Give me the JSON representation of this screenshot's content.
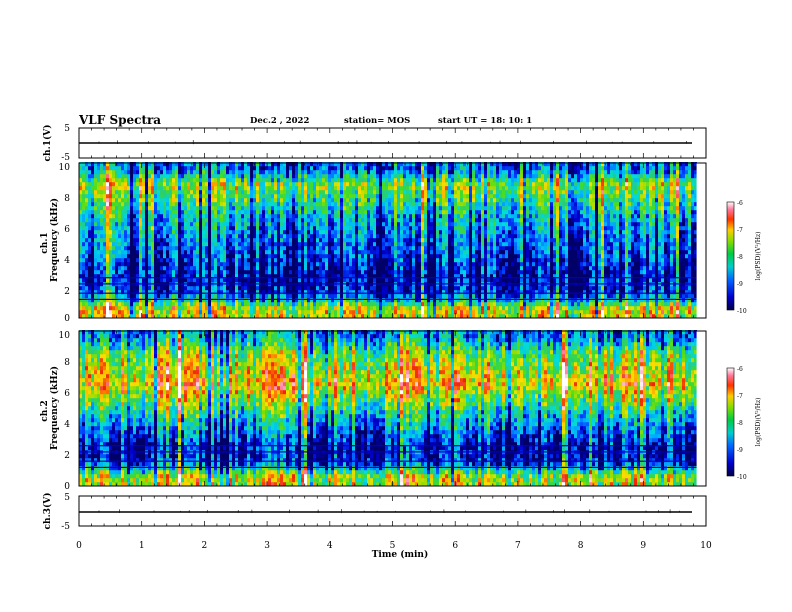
{
  "header": {
    "title": "VLF Spectra",
    "date": "Dec.2 , 2022",
    "station": "station= MOS",
    "start": "start UT =  18: 10: 1"
  },
  "colors": {
    "colormap": [
      "#000066",
      "#0000cc",
      "#0044ff",
      "#00aaff",
      "#00dddd",
      "#22cc88",
      "#44dd22",
      "#aadd00",
      "#ffdd00",
      "#ff8800",
      "#ee2200",
      "#ff88aa",
      "#ffffff"
    ]
  },
  "chart_data": [
    {
      "type": "line",
      "panel": "ch1-voltage",
      "ylabel": "ch.1(V)",
      "ylim": [
        -5,
        5
      ],
      "yticks": [
        "5",
        "-5"
      ],
      "level": 0
    },
    {
      "type": "heatmap",
      "panel": "ch1-spectrogram",
      "ylabel": "Frequency (kHz)",
      "channel_label": "ch.1",
      "ylim": [
        0,
        10
      ],
      "yticks": [
        "0",
        "2",
        "4",
        "6",
        "8",
        "10"
      ],
      "band_frequencies_khz": [
        0.5,
        1.5,
        2.5,
        4.5,
        6.5,
        8.5,
        9.5
      ],
      "band_log_psd": [
        -7.5,
        -9.5,
        -9.8,
        -9.3,
        -8.8,
        -7.8,
        -9.2
      ],
      "colorbar": {
        "label": "log(PSD)(V²/Hz)",
        "ticks": [
          "-6",
          "-7",
          "-8",
          "-9",
          "-10"
        ],
        "range": [
          -10,
          -6
        ]
      }
    },
    {
      "type": "heatmap",
      "panel": "ch2-spectrogram",
      "ylabel": "Frequency (kHz)",
      "channel_label": "ch.2",
      "ylim": [
        0,
        10
      ],
      "yticks": [
        "0",
        "2",
        "4",
        "6",
        "8",
        "10"
      ],
      "band_frequencies_khz": [
        0.5,
        1.5,
        2.5,
        4.5,
        6.5,
        8.5,
        9.5
      ],
      "band_log_psd": [
        -7.6,
        -9.6,
        -9.7,
        -8.6,
        -7.2,
        -8.0,
        -9.0
      ],
      "colorbar": {
        "label": "log(PSD)(V²/Hz)",
        "ticks": [
          "-6",
          "-7",
          "-8",
          "-9",
          "-10"
        ],
        "range": [
          -10,
          -6
        ]
      }
    },
    {
      "type": "line",
      "panel": "ch3-voltage",
      "ylabel": "ch.3(V)",
      "ylim": [
        -5,
        5
      ],
      "yticks": [
        "5",
        "-5"
      ],
      "level": 0
    }
  ],
  "xaxis": {
    "label": "Time (min)",
    "range": [
      0,
      10
    ],
    "ticks": [
      "0",
      "1",
      "2",
      "3",
      "4",
      "5",
      "6",
      "7",
      "8",
      "9",
      "10"
    ],
    "data_end": 9.85
  }
}
